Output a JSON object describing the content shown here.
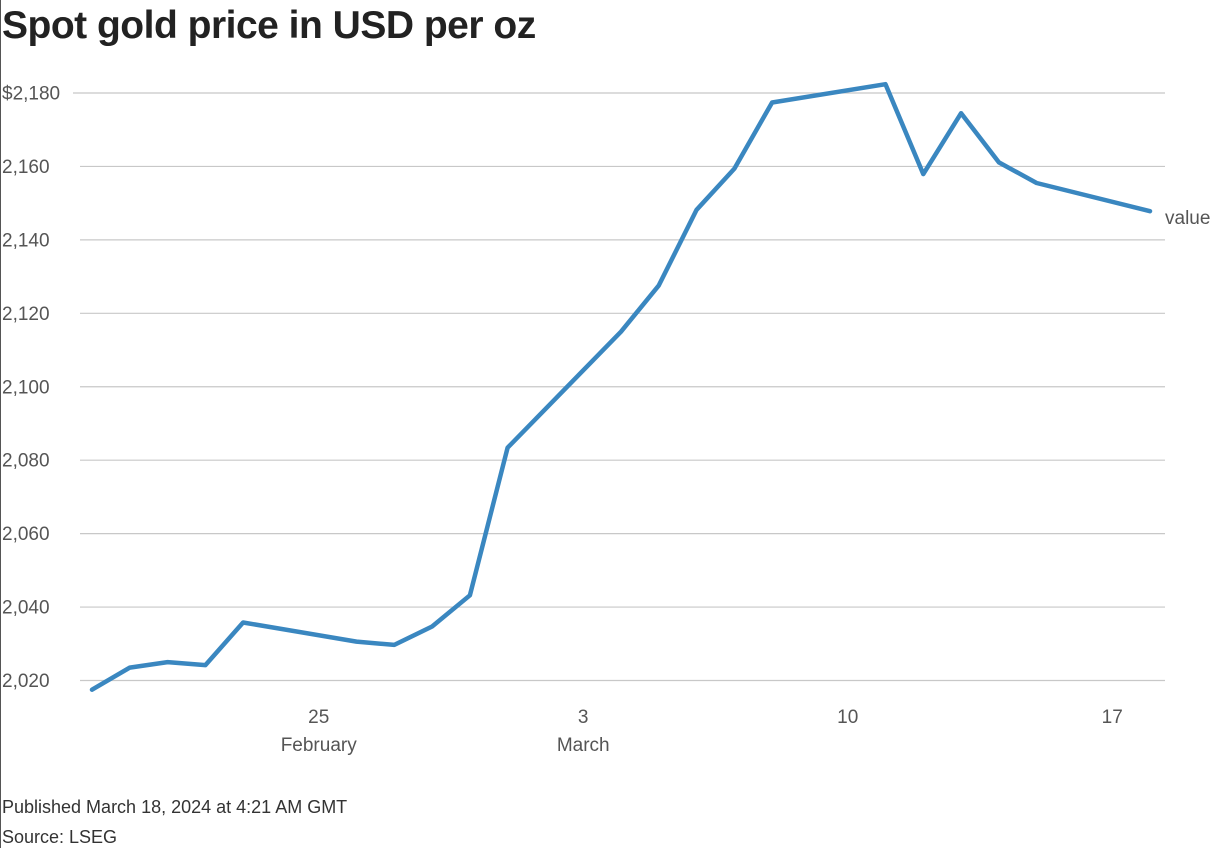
{
  "chart_data": {
    "type": "line",
    "title": "Spot gold price in USD per oz",
    "series": [
      {
        "name": "value",
        "color": "#3a87c0",
        "points": [
          [
            "2024-02-19",
            2017.5
          ],
          [
            "2024-02-20",
            2023.5
          ],
          [
            "2024-02-21",
            2025.0
          ],
          [
            "2024-02-22",
            2024.2
          ],
          [
            "2024-02-23",
            2035.8
          ],
          [
            "2024-02-26",
            2030.6
          ],
          [
            "2024-02-27",
            2029.7
          ],
          [
            "2024-02-28",
            2034.7
          ],
          [
            "2024-02-29",
            2043.2
          ],
          [
            "2024-03-01",
            2083.4
          ],
          [
            "2024-03-04",
            2115.0
          ],
          [
            "2024-03-05",
            2127.6
          ],
          [
            "2024-03-06",
            2148.2
          ],
          [
            "2024-03-07",
            2159.4
          ],
          [
            "2024-03-08",
            2177.4
          ],
          [
            "2024-03-11",
            2182.4
          ],
          [
            "2024-03-12",
            2157.9
          ],
          [
            "2024-03-13",
            2174.5
          ],
          [
            "2024-03-14",
            2161.1
          ],
          [
            "2024-03-15",
            2155.5
          ],
          [
            "2024-03-18",
            2147.8
          ]
        ]
      }
    ],
    "yticks": [
      {
        "value": 2020,
        "label": "2,020"
      },
      {
        "value": 2040,
        "label": "2,040"
      },
      {
        "value": 2060,
        "label": "2,060"
      },
      {
        "value": 2080,
        "label": "2,080"
      },
      {
        "value": 2100,
        "label": "2,100"
      },
      {
        "value": 2120,
        "label": "2,120"
      },
      {
        "value": 2140,
        "label": "2,140"
      },
      {
        "value": 2160,
        "label": "2,160"
      },
      {
        "value": 2180,
        "label": "2,180"
      }
    ],
    "y_top_prefix": "$",
    "xticks": [
      {
        "date": "2024-02-25",
        "label": "25",
        "sublabel": "February"
      },
      {
        "date": "2024-03-03",
        "label": "3",
        "sublabel": "March"
      },
      {
        "date": "2024-03-10",
        "label": "10",
        "sublabel": ""
      },
      {
        "date": "2024-03-17",
        "label": "17",
        "sublabel": ""
      }
    ],
    "xlim": [
      "2024-02-19",
      "2024-03-18"
    ],
    "ylim": [
      2015,
      2186
    ],
    "grid": true,
    "grid_color": "#c8c8c8",
    "legend": "inline-end"
  },
  "footer": {
    "published": "Published March 18, 2024 at 4:21 AM GMT",
    "source": "Source: LSEG"
  }
}
